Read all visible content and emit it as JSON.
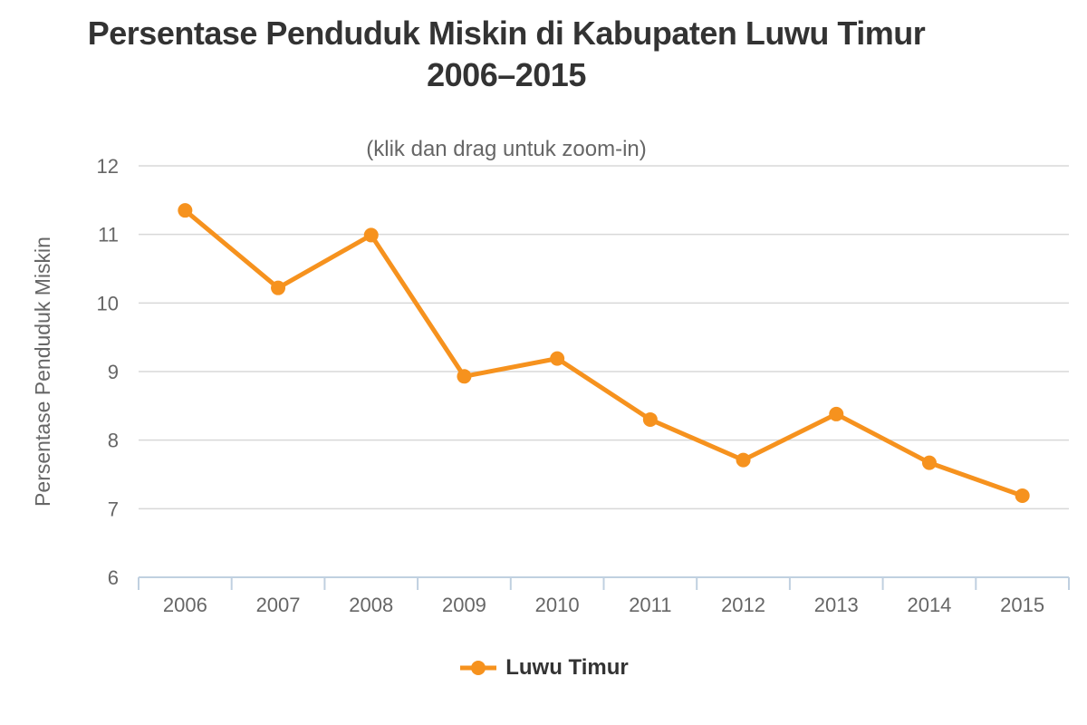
{
  "header": {
    "title_line1": "Persentase Penduduk Miskin di Kabupaten Luwu Timur",
    "title_line2": "2006–2015",
    "subtitle": "(klik dan drag untuk zoom-in)"
  },
  "chart_data": {
    "type": "line",
    "title": "Persentase Penduduk Miskin di Kabupaten Luwu Timur 2006–2015",
    "subtitle": "(klik dan drag untuk zoom-in)",
    "categories": [
      "2006",
      "2007",
      "2008",
      "2009",
      "2010",
      "2011",
      "2012",
      "2013",
      "2014",
      "2015"
    ],
    "series": [
      {
        "name": "Luwu Timur",
        "color": "#F6921E",
        "values": [
          11.35,
          10.22,
          10.99,
          8.93,
          9.19,
          8.3,
          7.71,
          8.38,
          7.67,
          7.19
        ]
      }
    ],
    "xlabel": "",
    "ylabel": "Persentase Penduduk Miskin",
    "ylim": [
      6,
      12
    ],
    "yticks": [
      6,
      7,
      8,
      9,
      10,
      11,
      12
    ],
    "grid": true,
    "legend_position": "bottom",
    "marker": "circle"
  },
  "colors": {
    "series": "#F6921E",
    "grid": "#D8D8D8",
    "axis_line": "#C0D0E0",
    "label": "#666666",
    "title": "#333333"
  }
}
